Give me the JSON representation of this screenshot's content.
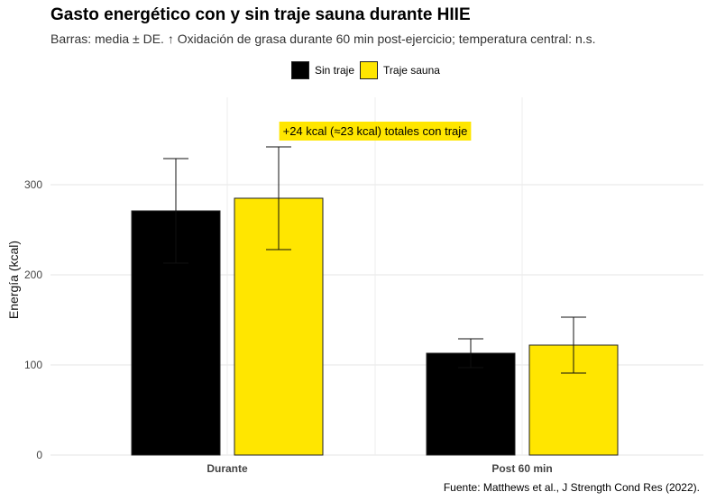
{
  "chart_data": {
    "type": "bar",
    "title": "Gasto energético con y sin traje sauna durante HIIE",
    "subtitle": "Barras: media ± DE. ↑ Oxidación de grasa durante 60 min post-ejercicio; temperatura central: n.s.",
    "ylabel": "Energía (kcal)",
    "xlabel": "",
    "categories": [
      "Durante",
      "Post 60 min"
    ],
    "ylim": [
      0,
      355
    ],
    "yticks": [
      0,
      100,
      200,
      300
    ],
    "grid": true,
    "legend_position": "top",
    "series": [
      {
        "name": "Sin traje",
        "color": "#000000",
        "values": [
          271,
          113
        ],
        "errors": [
          58,
          16
        ]
      },
      {
        "name": "Traje sauna",
        "color": "#FFE600",
        "values": [
          285,
          122
        ],
        "errors": [
          57,
          31
        ]
      }
    ],
    "annotation": "+24 kcal (≈23 kcal) totales con traje",
    "caption": "Fuente: Matthews et al., J Strength Cond Res (2022)."
  }
}
